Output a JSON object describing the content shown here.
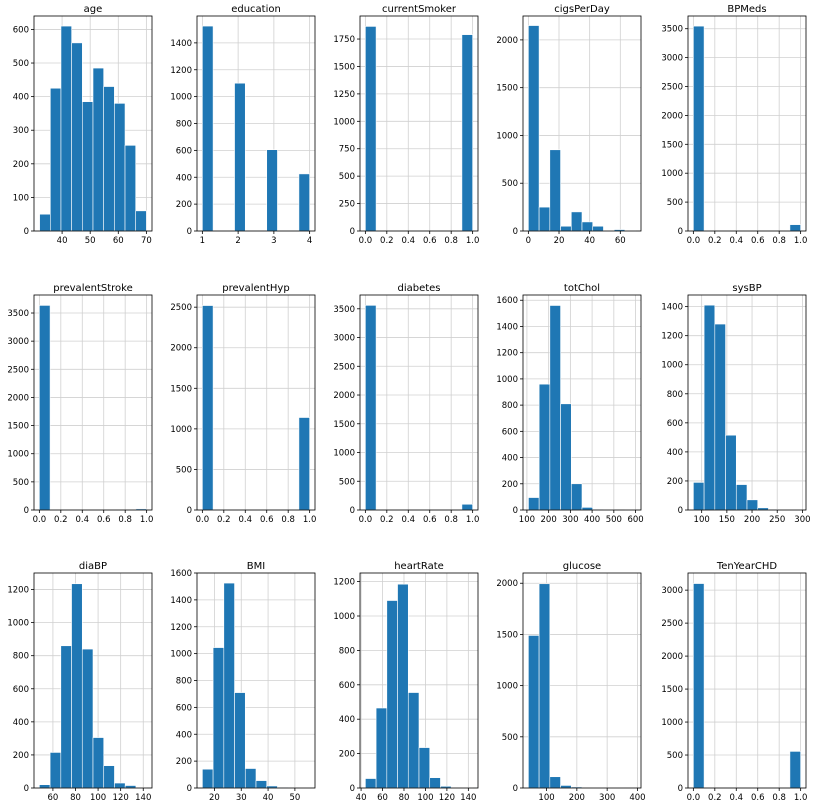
{
  "colors": {
    "bar": "#1f77b4",
    "grid": "#d0d0d0",
    "axis": "#000000"
  },
  "chart_data": [
    {
      "type": "bar",
      "title": "age",
      "edges": [
        32,
        35.8,
        39.6,
        43.4,
        47.2,
        51,
        54.8,
        58.6,
        62.4,
        66.2,
        70
      ],
      "values": [
        50,
        425,
        610,
        560,
        385,
        485,
        430,
        380,
        255,
        60
      ],
      "xlim": [
        30,
        72
      ],
      "ylim": [
        0,
        640
      ],
      "xticks": [
        40,
        50,
        60,
        70
      ],
      "yticks": [
        0,
        100,
        200,
        300,
        400,
        500,
        600
      ]
    },
    {
      "type": "bar",
      "title": "education",
      "edges": [
        1,
        1.3,
        1.6,
        1.9,
        2.2,
        2.5,
        2.8,
        3.1,
        3.4,
        3.7,
        4
      ],
      "values": [
        1525,
        0,
        0,
        1100,
        0,
        0,
        605,
        0,
        0,
        425
      ],
      "xlim": [
        0.85,
        4.15
      ],
      "ylim": [
        0,
        1600
      ],
      "xticks": [
        1,
        2,
        3,
        4
      ],
      "yticks": [
        0,
        200,
        400,
        600,
        800,
        1000,
        1200,
        1400
      ]
    },
    {
      "type": "bar",
      "title": "currentSmoker",
      "edges": [
        0,
        0.1,
        0.2,
        0.3,
        0.4,
        0.5,
        0.6,
        0.7,
        0.8,
        0.9,
        1
      ],
      "values": [
        1865,
        0,
        0,
        0,
        0,
        0,
        0,
        0,
        0,
        1790
      ],
      "xlim": [
        -0.05,
        1.05
      ],
      "ylim": [
        0,
        1960
      ],
      "xticks": [
        0.0,
        0.2,
        0.4,
        0.6,
        0.8,
        1.0
      ],
      "yticks": [
        0,
        250,
        500,
        750,
        1000,
        1250,
        1500,
        1750
      ]
    },
    {
      "type": "bar",
      "title": "cigsPerDay",
      "edges": [
        0,
        7,
        14,
        21,
        28,
        35,
        42,
        49,
        56,
        63,
        70
      ],
      "values": [
        2150,
        250,
        850,
        50,
        200,
        95,
        50,
        5,
        15,
        3
      ],
      "xlim": [
        -3.5,
        73.5
      ],
      "ylim": [
        0,
        2250
      ],
      "xticks": [
        0,
        20,
        40,
        60
      ],
      "yticks": [
        0,
        500,
        1000,
        1500,
        2000
      ]
    },
    {
      "type": "bar",
      "title": "BPMeds",
      "edges": [
        0,
        0.1,
        0.2,
        0.3,
        0.4,
        0.5,
        0.6,
        0.7,
        0.8,
        0.9,
        1
      ],
      "values": [
        3545,
        0,
        0,
        0,
        0,
        0,
        0,
        0,
        0,
        110
      ],
      "xlim": [
        -0.05,
        1.05
      ],
      "ylim": [
        0,
        3720
      ],
      "xticks": [
        0.0,
        0.2,
        0.4,
        0.6,
        0.8,
        1.0
      ],
      "yticks": [
        0,
        500,
        1000,
        1500,
        2000,
        2500,
        3000,
        3500
      ]
    },
    {
      "type": "bar",
      "title": "prevalentStroke",
      "edges": [
        0,
        0.1,
        0.2,
        0.3,
        0.4,
        0.5,
        0.6,
        0.7,
        0.8,
        0.9,
        1
      ],
      "values": [
        3635,
        0,
        0,
        0,
        0,
        0,
        0,
        0,
        0,
        20
      ],
      "xlim": [
        -0.05,
        1.05
      ],
      "ylim": [
        0,
        3820
      ],
      "xticks": [
        0.0,
        0.2,
        0.4,
        0.6,
        0.8,
        1.0
      ],
      "yticks": [
        0,
        500,
        1000,
        1500,
        2000,
        2500,
        3000,
        3500
      ]
    },
    {
      "type": "bar",
      "title": "prevalentHyp",
      "edges": [
        0,
        0.1,
        0.2,
        0.3,
        0.4,
        0.5,
        0.6,
        0.7,
        0.8,
        0.9,
        1
      ],
      "values": [
        2520,
        0,
        0,
        0,
        0,
        0,
        0,
        0,
        0,
        1140
      ],
      "xlim": [
        -0.05,
        1.05
      ],
      "ylim": [
        0,
        2650
      ],
      "xticks": [
        0.0,
        0.2,
        0.4,
        0.6,
        0.8,
        1.0
      ],
      "yticks": [
        0,
        500,
        1000,
        1500,
        2000,
        2500
      ]
    },
    {
      "type": "bar",
      "title": "diabetes",
      "edges": [
        0,
        0.1,
        0.2,
        0.3,
        0.4,
        0.5,
        0.6,
        0.7,
        0.8,
        0.9,
        1
      ],
      "values": [
        3560,
        0,
        0,
        0,
        0,
        0,
        0,
        0,
        0,
        100
      ],
      "xlim": [
        -0.05,
        1.05
      ],
      "ylim": [
        0,
        3740
      ],
      "xticks": [
        0.0,
        0.2,
        0.4,
        0.6,
        0.8,
        1.0
      ],
      "yticks": [
        0,
        500,
        1000,
        1500,
        2000,
        2500,
        3000,
        3500
      ]
    },
    {
      "type": "bar",
      "title": "totChol",
      "edges": [
        107,
        156.3,
        205.6,
        254.9,
        304.2,
        353.5,
        402.8,
        452.1,
        501.4,
        550.7,
        600
      ],
      "values": [
        95,
        960,
        1560,
        810,
        200,
        20,
        5,
        2,
        0,
        2
      ],
      "xlim": [
        82,
        625
      ],
      "ylim": [
        0,
        1640
      ],
      "xticks": [
        100,
        200,
        300,
        400,
        500,
        600
      ],
      "yticks": [
        0,
        200,
        400,
        600,
        800,
        1000,
        1200,
        1400,
        1600
      ]
    },
    {
      "type": "bar",
      "title": "sysBP",
      "edges": [
        83.5,
        104.8,
        126.1,
        147.4,
        168.7,
        190,
        211.3,
        232.6,
        253.9,
        275.2,
        296.5
      ],
      "values": [
        190,
        1410,
        1280,
        515,
        175,
        70,
        15,
        5,
        2,
        2
      ],
      "xlim": [
        72.85,
        307.15
      ],
      "ylim": [
        0,
        1480
      ],
      "xticks": [
        100,
        150,
        200,
        250,
        300
      ],
      "yticks": [
        0,
        200,
        400,
        600,
        800,
        1000,
        1200,
        1400
      ]
    },
    {
      "type": "bar",
      "title": "diaBP",
      "edges": [
        48,
        57.5,
        67,
        76.5,
        86,
        95.5,
        105,
        114.5,
        124,
        133.5,
        143
      ],
      "values": [
        20,
        215,
        860,
        1235,
        840,
        305,
        135,
        30,
        15,
        2
      ],
      "xlim": [
        43.25,
        147.75
      ],
      "ylim": [
        0,
        1300
      ],
      "xticks": [
        60,
        80,
        100,
        120,
        140
      ],
      "yticks": [
        0,
        200,
        400,
        600,
        800,
        1000,
        1200
      ]
    },
    {
      "type": "bar",
      "title": "BMI",
      "edges": [
        15.5,
        19.5,
        23.5,
        27.5,
        31.5,
        35.5,
        39.5,
        43.5,
        47.5,
        51.5,
        55.5
      ],
      "values": [
        140,
        1045,
        1525,
        710,
        145,
        55,
        15,
        5,
        2,
        2
      ],
      "xlim": [
        13.5,
        57.5
      ],
      "ylim": [
        0,
        1600
      ],
      "xticks": [
        20,
        30,
        40,
        50
      ],
      "yticks": [
        0,
        200,
        400,
        600,
        800,
        1000,
        1200,
        1400,
        1600
      ]
    },
    {
      "type": "bar",
      "title": "heartRate",
      "edges": [
        44,
        54,
        64,
        74,
        84,
        94,
        104,
        114,
        124,
        134,
        144
      ],
      "values": [
        55,
        465,
        1090,
        1185,
        555,
        235,
        60,
        10,
        3,
        2
      ],
      "xlim": [
        39,
        149
      ],
      "ylim": [
        0,
        1250
      ],
      "xticks": [
        40,
        60,
        80,
        100,
        120,
        140
      ],
      "yticks": [
        0,
        200,
        400,
        600,
        800,
        1000,
        1200
      ]
    },
    {
      "type": "bar",
      "title": "glucose",
      "edges": [
        40,
        75.4,
        110.8,
        146.2,
        181.6,
        217,
        252.4,
        287.8,
        323.2,
        358.6,
        394
      ],
      "values": [
        1490,
        1995,
        110,
        25,
        10,
        5,
        3,
        2,
        2,
        5
      ],
      "xlim": [
        22.3,
        411.7
      ],
      "ylim": [
        0,
        2100
      ],
      "xticks": [
        100,
        200,
        300,
        400
      ],
      "yticks": [
        0,
        500,
        1000,
        1500,
        2000
      ]
    },
    {
      "type": "bar",
      "title": "TenYearCHD",
      "edges": [
        0,
        0.1,
        0.2,
        0.3,
        0.4,
        0.5,
        0.6,
        0.7,
        0.8,
        0.9,
        1
      ],
      "values": [
        3100,
        0,
        0,
        0,
        0,
        0,
        0,
        0,
        0,
        555
      ],
      "xlim": [
        -0.05,
        1.05
      ],
      "ylim": [
        0,
        3260
      ],
      "xticks": [
        0.0,
        0.2,
        0.4,
        0.6,
        0.8,
        1.0
      ],
      "yticks": [
        0,
        500,
        1000,
        1500,
        2000,
        2500,
        3000
      ]
    }
  ]
}
